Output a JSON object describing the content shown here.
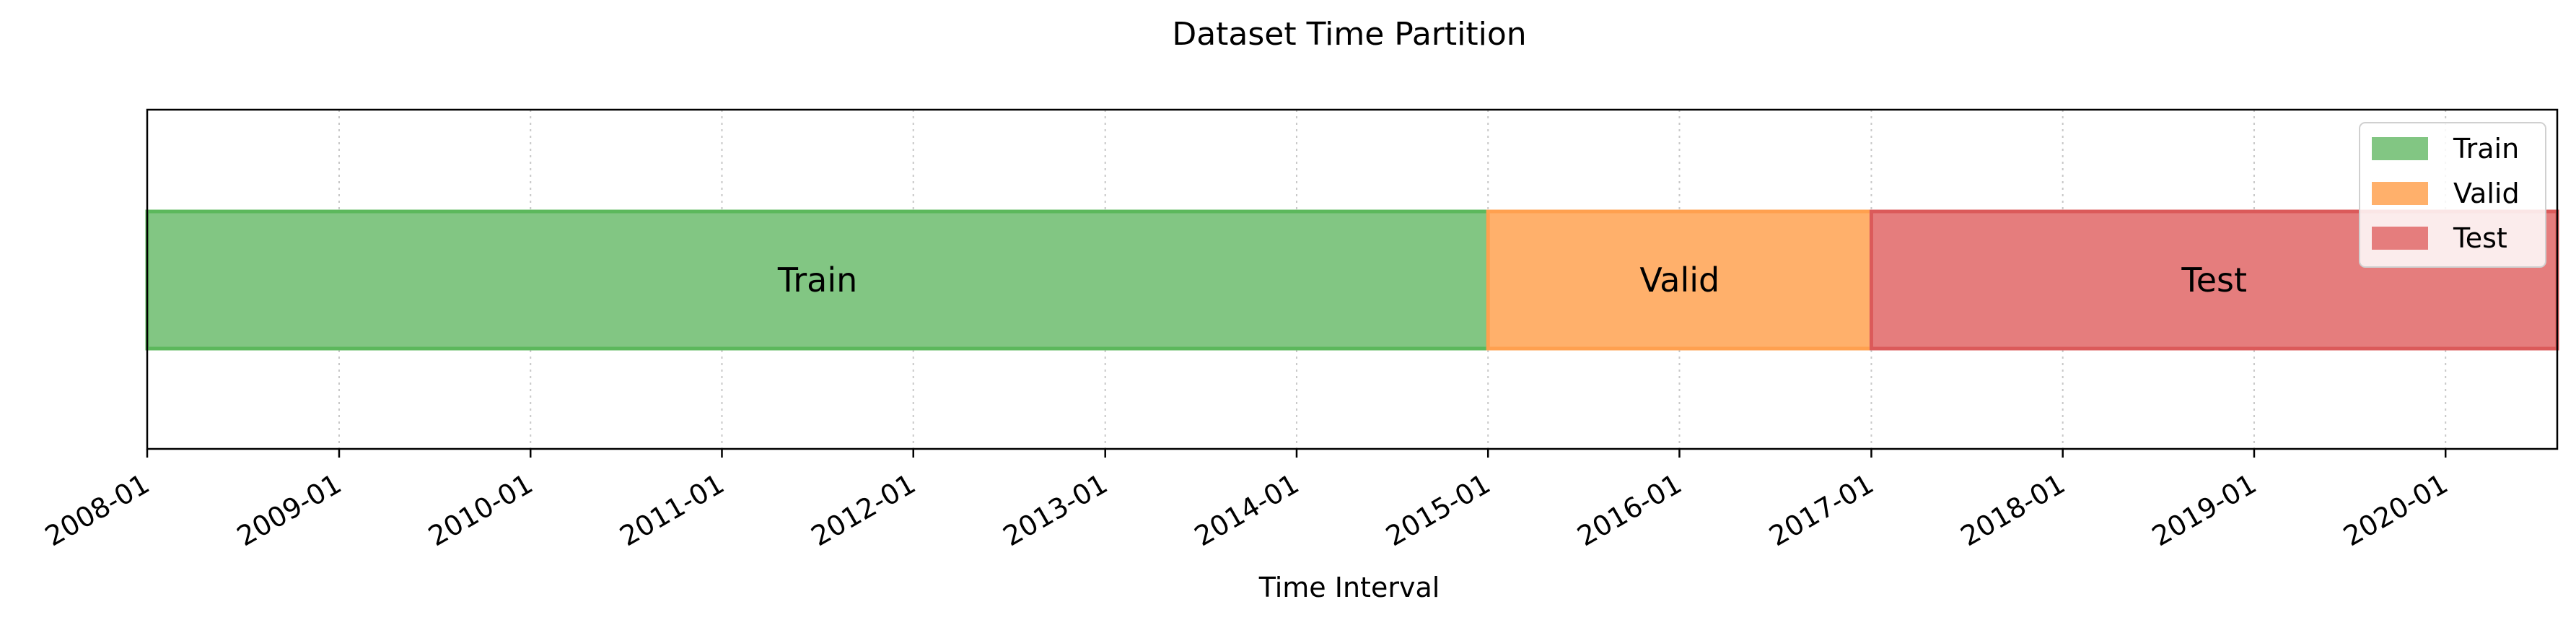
{
  "chart_data": {
    "type": "bar",
    "orientation": "horizontal-timeline",
    "title": "Dataset Time Partition",
    "xlabel": "Time Interval",
    "ylabel": "",
    "xlim": [
      "2008-01-01",
      "2020-08-01"
    ],
    "x_ticks": [
      "2008-01",
      "2009-01",
      "2010-01",
      "2011-01",
      "2012-01",
      "2013-01",
      "2014-01",
      "2015-01",
      "2016-01",
      "2017-01",
      "2018-01",
      "2019-01",
      "2020-01"
    ],
    "grid": "x-dotted",
    "legend_position": "top-right",
    "series": [
      {
        "name": "Train",
        "label": "Train",
        "start": "2008-01-01",
        "end": "2015-01-01",
        "color": "#82c683",
        "edge": "#5cb85c"
      },
      {
        "name": "Valid",
        "label": "Valid",
        "start": "2015-01-01",
        "end": "2017-01-01",
        "color": "#ffb06b",
        "edge": "#ffa04f"
      },
      {
        "name": "Test",
        "label": "Test",
        "start": "2017-01-01",
        "end": "2020-08-01",
        "color": "#e57d7d",
        "edge": "#db5a5a"
      }
    ]
  }
}
